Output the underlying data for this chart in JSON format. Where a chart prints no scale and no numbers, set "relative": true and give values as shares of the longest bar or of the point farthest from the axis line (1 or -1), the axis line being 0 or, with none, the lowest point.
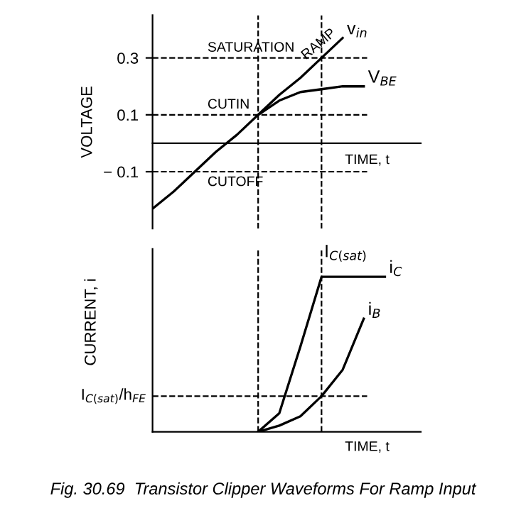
{
  "chart_data": [
    {
      "type": "line",
      "ylabel": "VOLTAGE",
      "xlabel": "TIME, t",
      "categories": [
        null,
        null,
        null,
        null,
        null,
        null,
        null,
        null,
        null,
        null,
        null,
        null,
        null
      ],
      "ylim": [
        -0.3,
        0.45
      ],
      "yticks": [
        {
          "value": 0.3,
          "label": "0.3"
        },
        {
          "value": 0.1,
          "label": "0.1"
        },
        {
          "value": -0.1,
          "label": "− 0.1"
        }
      ],
      "tick_labels": "y",
      "marker": "none",
      "line_style": "solid",
      "series": [
        {
          "name": "v$_{in}$",
          "color": "#000000",
          "values": [
            -0.23,
            -0.17,
            -0.1,
            -0.03,
            0.03,
            0.1,
            0.17,
            0.23,
            0.3,
            0.37,
            null,
            null,
            null
          ]
        },
        {
          "name": "V$_{BE}$",
          "color": "#000000",
          "values": [
            null,
            null,
            null,
            null,
            null,
            0.1,
            0.15,
            0.18,
            0.19,
            0.2,
            0.2,
            null,
            null
          ]
        }
      ],
      "ref_lines": [
        {
          "axis": "y",
          "value": 0.3,
          "label": "SATURATION",
          "line_style": "dashed",
          "color": "#000000"
        },
        {
          "axis": "y",
          "value": 0.1,
          "label": "CUTIN",
          "line_style": "dashed",
          "color": "#000000"
        },
        {
          "axis": "y",
          "value": -0.1,
          "label": "CUTOFF",
          "line_style": "dashed",
          "color": "#000000"
        }
      ],
      "annotations": [
        "RAMP"
      ]
    },
    {
      "type": "line",
      "ylabel": "CURRENT, i",
      "xlabel": "TIME, t",
      "categories": [
        null,
        null,
        null,
        null,
        null,
        null,
        null,
        null,
        null,
        null,
        null,
        null,
        null
      ],
      "relative": true,
      "tick_labels": false,
      "marker": "none",
      "line_style": "solid",
      "series": [
        {
          "name": "i$_{C}$",
          "color": "#000000",
          "values": [
            null,
            null,
            null,
            null,
            null,
            0,
            0.12,
            0.55,
            1,
            1,
            1,
            1,
            null
          ]
        },
        {
          "name": "i$_{B}$",
          "color": "#000000",
          "values": [
            null,
            null,
            null,
            null,
            null,
            0,
            0.04,
            0.1,
            0.23,
            0.4,
            0.73,
            null,
            null
          ]
        }
      ],
      "ref_lines": [
        {
          "axis": "y",
          "value": 0.23,
          "label": "I$_{C(sat)}$/h$_{FE}$",
          "line_style": "dashed",
          "color": "#000000"
        }
      ],
      "annotations": [
        "I$_{C(sat)}$",
        "Fig. 30.69  Transistor Clipper Waveforms For Ramp Input"
      ]
    }
  ]
}
